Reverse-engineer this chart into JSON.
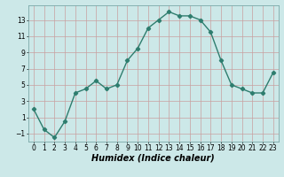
{
  "x": [
    0,
    1,
    2,
    3,
    4,
    5,
    6,
    7,
    8,
    9,
    10,
    11,
    12,
    13,
    14,
    15,
    16,
    17,
    18,
    19,
    20,
    21,
    22,
    23
  ],
  "y": [
    2,
    -0.5,
    -1.5,
    0.5,
    4,
    4.5,
    5.5,
    4.5,
    5,
    8,
    9.5,
    12,
    13,
    14,
    13.5,
    13.5,
    13,
    11.5,
    8,
    5,
    4.5,
    4,
    4,
    6.5
  ],
  "line_color": "#2e7d6e",
  "marker": "D",
  "marker_size": 2.2,
  "bg_color": "#cce8e8",
  "grid_color": "#b8d4d4",
  "xlabel": "Humidex (Indice chaleur)",
  "xlabel_fontsize": 7,
  "xlim": [
    -0.5,
    23.5
  ],
  "ylim": [
    -2,
    14.8
  ],
  "yticks": [
    -1,
    1,
    3,
    5,
    7,
    9,
    11,
    13
  ],
  "xticks": [
    0,
    1,
    2,
    3,
    4,
    5,
    6,
    7,
    8,
    9,
    10,
    11,
    12,
    13,
    14,
    15,
    16,
    17,
    18,
    19,
    20,
    21,
    22,
    23
  ],
  "tick_fontsize": 5.5,
  "linewidth": 1.0
}
